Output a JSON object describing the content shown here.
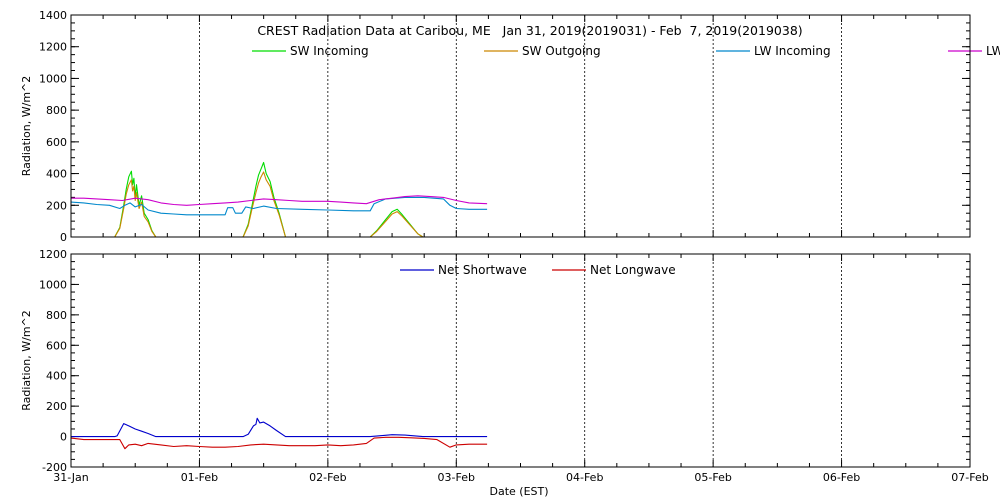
{
  "title": "CREST Radiation Data at Caribou, ME   Jan 31, 2019(2019031) - Feb  7, 2019(2019038)",
  "xlabel": "Date (EST)",
  "x_ticks": [
    "31-Jan",
    "01-Feb",
    "02-Feb",
    "03-Feb",
    "04-Feb",
    "05-Feb",
    "06-Feb",
    "07-Feb"
  ],
  "chart_data": [
    {
      "type": "line",
      "ylabel": "Radiation, W/m^2",
      "xlim": [
        0,
        7
      ],
      "ylim": [
        0,
        1400
      ],
      "yticks": [
        0,
        200,
        400,
        600,
        800,
        1000,
        1200,
        1400
      ],
      "grid": true,
      "legend_position": "top",
      "series": [
        {
          "name": "SW Incoming",
          "color": "#00dd00",
          "points": [
            [
              0.34,
              0
            ],
            [
              0.38,
              60
            ],
            [
              0.41,
              200
            ],
            [
              0.43,
              300
            ],
            [
              0.45,
              380
            ],
            [
              0.47,
              415
            ],
            [
              0.48,
              330
            ],
            [
              0.49,
              370
            ],
            [
              0.5,
              250
            ],
            [
              0.51,
              330
            ],
            [
              0.53,
              200
            ],
            [
              0.55,
              260
            ],
            [
              0.57,
              150
            ],
            [
              0.6,
              110
            ],
            [
              0.63,
              40
            ],
            [
              0.66,
              0
            ],
            [
              1.34,
              0
            ],
            [
              1.38,
              80
            ],
            [
              1.41,
              200
            ],
            [
              1.44,
              320
            ],
            [
              1.46,
              390
            ],
            [
              1.48,
              430
            ],
            [
              1.5,
              470
            ],
            [
              1.52,
              400
            ],
            [
              1.55,
              350
            ],
            [
              1.58,
              250
            ],
            [
              1.62,
              150
            ],
            [
              1.67,
              0
            ],
            [
              2.33,
              0
            ],
            [
              2.38,
              40
            ],
            [
              2.44,
              100
            ],
            [
              2.5,
              160
            ],
            [
              2.54,
              175
            ],
            [
              2.58,
              140
            ],
            [
              2.64,
              80
            ],
            [
              2.7,
              20
            ],
            [
              2.74,
              0
            ]
          ]
        },
        {
          "name": "SW Outgoing",
          "color": "#cc8800",
          "points": [
            [
              0.34,
              0
            ],
            [
              0.38,
              55
            ],
            [
              0.41,
              180
            ],
            [
              0.43,
              270
            ],
            [
              0.45,
              330
            ],
            [
              0.47,
              360
            ],
            [
              0.48,
              290
            ],
            [
              0.49,
              320
            ],
            [
              0.5,
              230
            ],
            [
              0.51,
              280
            ],
            [
              0.53,
              180
            ],
            [
              0.55,
              220
            ],
            [
              0.57,
              130
            ],
            [
              0.6,
              95
            ],
            [
              0.63,
              35
            ],
            [
              0.66,
              0
            ],
            [
              1.34,
              0
            ],
            [
              1.38,
              70
            ],
            [
              1.41,
              180
            ],
            [
              1.44,
              280
            ],
            [
              1.46,
              340
            ],
            [
              1.48,
              380
            ],
            [
              1.5,
              410
            ],
            [
              1.52,
              360
            ],
            [
              1.55,
              320
            ],
            [
              1.58,
              230
            ],
            [
              1.62,
              140
            ],
            [
              1.67,
              0
            ],
            [
              2.33,
              0
            ],
            [
              2.38,
              35
            ],
            [
              2.44,
              90
            ],
            [
              2.5,
              145
            ],
            [
              2.54,
              160
            ],
            [
              2.58,
              130
            ],
            [
              2.64,
              75
            ],
            [
              2.7,
              20
            ],
            [
              2.74,
              0
            ]
          ]
        },
        {
          "name": "LW Incoming",
          "color": "#0088cc",
          "points": [
            [
              0.0,
              220
            ],
            [
              0.1,
              215
            ],
            [
              0.2,
              205
            ],
            [
              0.3,
              200
            ],
            [
              0.38,
              180
            ],
            [
              0.42,
              200
            ],
            [
              0.46,
              215
            ],
            [
              0.5,
              190
            ],
            [
              0.55,
              205
            ],
            [
              0.6,
              170
            ],
            [
              0.7,
              150
            ],
            [
              0.8,
              145
            ],
            [
              0.9,
              140
            ],
            [
              1.0,
              140
            ],
            [
              1.2,
              140
            ],
            [
              1.22,
              185
            ],
            [
              1.26,
              185
            ],
            [
              1.28,
              150
            ],
            [
              1.33,
              150
            ],
            [
              1.36,
              190
            ],
            [
              1.42,
              180
            ],
            [
              1.5,
              195
            ],
            [
              1.6,
              180
            ],
            [
              1.8,
              175
            ],
            [
              2.0,
              170
            ],
            [
              2.2,
              165
            ],
            [
              2.33,
              165
            ],
            [
              2.36,
              210
            ],
            [
              2.45,
              240
            ],
            [
              2.6,
              250
            ],
            [
              2.75,
              250
            ],
            [
              2.9,
              240
            ],
            [
              2.95,
              200
            ],
            [
              3.0,
              180
            ],
            [
              3.1,
              175
            ],
            [
              3.24,
              175
            ]
          ]
        },
        {
          "name": "LW Outgoing",
          "color": "#cc00cc",
          "points": [
            [
              0.0,
              245
            ],
            [
              0.1,
              245
            ],
            [
              0.2,
              240
            ],
            [
              0.3,
              235
            ],
            [
              0.4,
              230
            ],
            [
              0.5,
              245
            ],
            [
              0.6,
              235
            ],
            [
              0.7,
              215
            ],
            [
              0.8,
              205
            ],
            [
              0.9,
              200
            ],
            [
              1.0,
              205
            ],
            [
              1.1,
              210
            ],
            [
              1.2,
              215
            ],
            [
              1.3,
              220
            ],
            [
              1.4,
              230
            ],
            [
              1.5,
              240
            ],
            [
              1.6,
              235
            ],
            [
              1.7,
              230
            ],
            [
              1.8,
              225
            ],
            [
              1.9,
              225
            ],
            [
              2.0,
              225
            ],
            [
              2.1,
              220
            ],
            [
              2.2,
              215
            ],
            [
              2.3,
              210
            ],
            [
              2.4,
              235
            ],
            [
              2.5,
              245
            ],
            [
              2.6,
              255
            ],
            [
              2.7,
              260
            ],
            [
              2.8,
              255
            ],
            [
              2.9,
              250
            ],
            [
              3.0,
              230
            ],
            [
              3.1,
              215
            ],
            [
              3.24,
              210
            ]
          ]
        }
      ]
    },
    {
      "type": "line",
      "ylabel": "Radiation, W/m^2",
      "xlim": [
        0,
        7
      ],
      "ylim": [
        -200,
        1200
      ],
      "yticks": [
        -200,
        0,
        200,
        400,
        600,
        800,
        1000,
        1200
      ],
      "grid": true,
      "legend_position": "top",
      "series": [
        {
          "name": "Net Shortwave",
          "color": "#0000cc",
          "points": [
            [
              0.0,
              0
            ],
            [
              0.34,
              0
            ],
            [
              0.36,
              5
            ],
            [
              0.41,
              85
            ],
            [
              0.45,
              70
            ],
            [
              0.5,
              50
            ],
            [
              0.55,
              35
            ],
            [
              0.6,
              20
            ],
            [
              0.66,
              0
            ],
            [
              1.34,
              0
            ],
            [
              1.38,
              15
            ],
            [
              1.42,
              70
            ],
            [
              1.44,
              80
            ],
            [
              1.45,
              120
            ],
            [
              1.47,
              90
            ],
            [
              1.5,
              95
            ],
            [
              1.55,
              70
            ],
            [
              1.6,
              40
            ],
            [
              1.67,
              0
            ],
            [
              2.33,
              0
            ],
            [
              2.4,
              5
            ],
            [
              2.5,
              12
            ],
            [
              2.6,
              10
            ],
            [
              2.74,
              0
            ],
            [
              3.24,
              0
            ]
          ]
        },
        {
          "name": "Net Longwave",
          "color": "#cc0000",
          "points": [
            [
              0.0,
              -10
            ],
            [
              0.1,
              -20
            ],
            [
              0.2,
              -20
            ],
            [
              0.3,
              -20
            ],
            [
              0.38,
              -20
            ],
            [
              0.42,
              -80
            ],
            [
              0.45,
              -55
            ],
            [
              0.5,
              -50
            ],
            [
              0.55,
              -60
            ],
            [
              0.6,
              -45
            ],
            [
              0.7,
              -55
            ],
            [
              0.8,
              -65
            ],
            [
              0.9,
              -60
            ],
            [
              1.0,
              -65
            ],
            [
              1.1,
              -70
            ],
            [
              1.2,
              -70
            ],
            [
              1.3,
              -65
            ],
            [
              1.4,
              -55
            ],
            [
              1.5,
              -50
            ],
            [
              1.6,
              -55
            ],
            [
              1.7,
              -60
            ],
            [
              1.8,
              -60
            ],
            [
              1.9,
              -60
            ],
            [
              2.0,
              -55
            ],
            [
              2.1,
              -60
            ],
            [
              2.2,
              -55
            ],
            [
              2.3,
              -45
            ],
            [
              2.36,
              -10
            ],
            [
              2.45,
              -5
            ],
            [
              2.55,
              -5
            ],
            [
              2.65,
              -8
            ],
            [
              2.75,
              -12
            ],
            [
              2.85,
              -20
            ],
            [
              2.95,
              -70
            ],
            [
              3.0,
              -55
            ],
            [
              3.1,
              -50
            ],
            [
              3.24,
              -50
            ]
          ]
        }
      ]
    }
  ]
}
